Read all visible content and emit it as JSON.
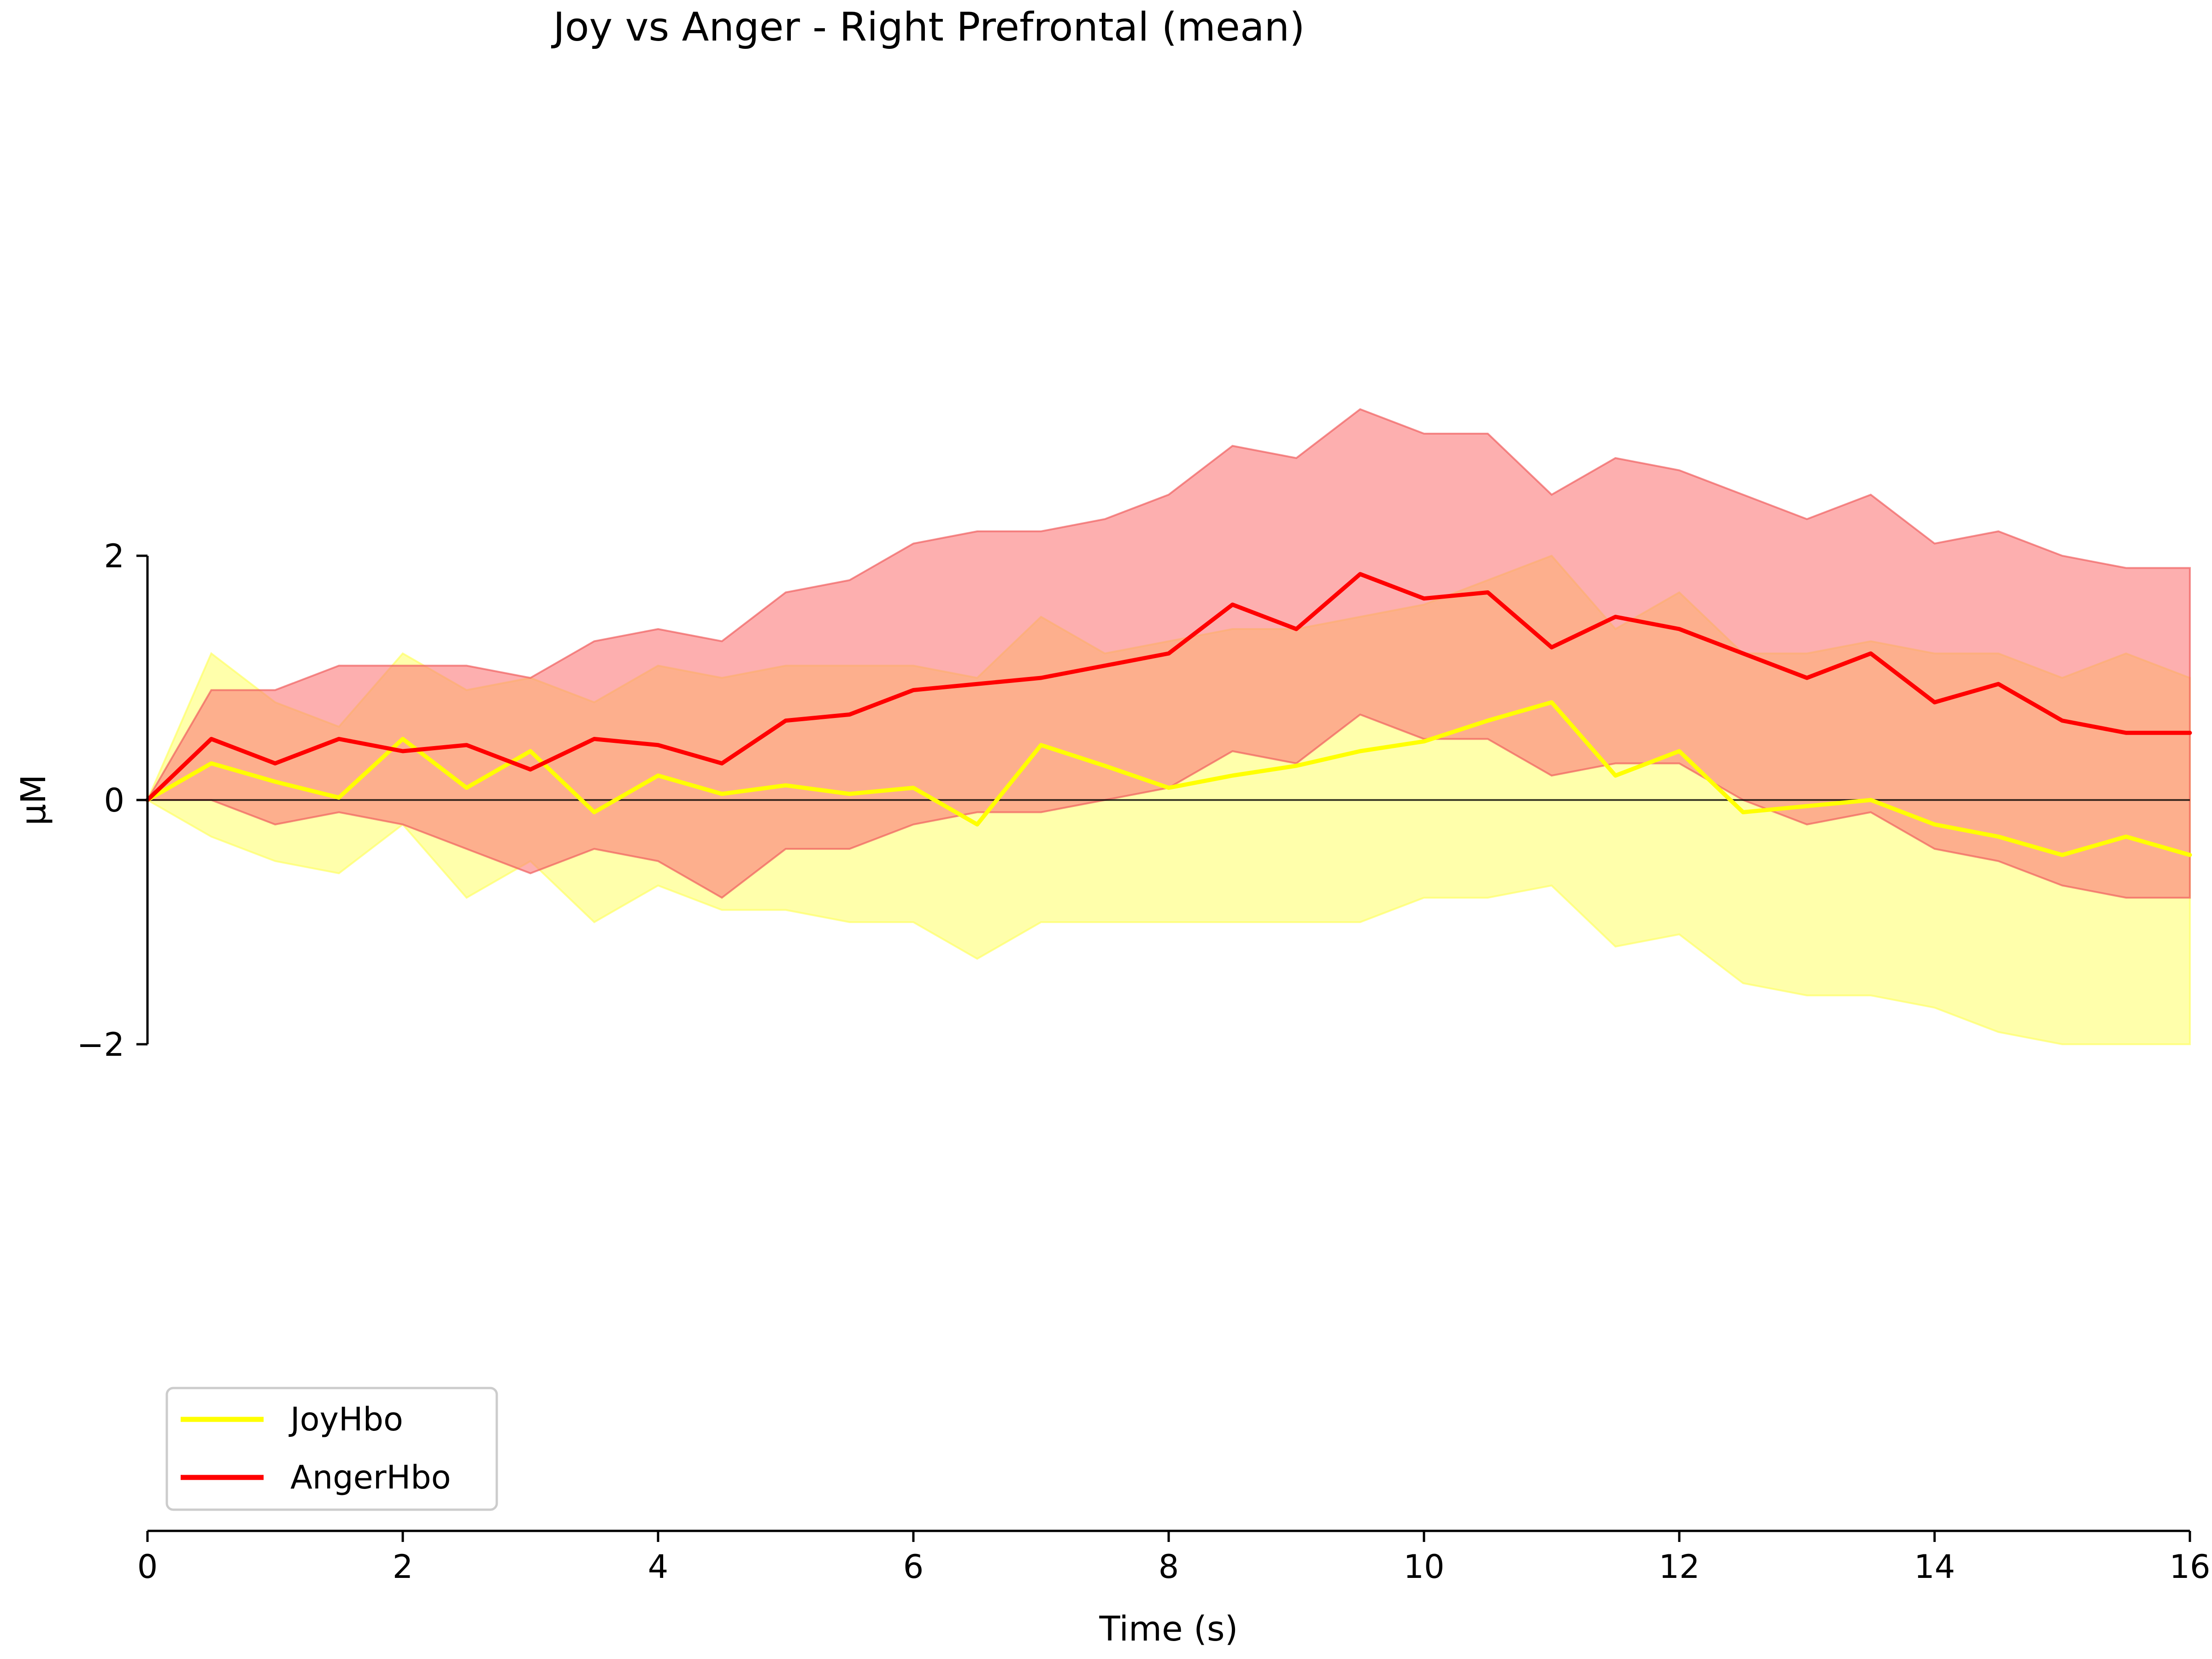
{
  "chart_data": {
    "type": "line",
    "title": "Joy vs Anger - Right Prefrontal (mean)",
    "xlabel": "Time (s)",
    "ylabel": "μM",
    "xlim": [
      0,
      16
    ],
    "ylim": [
      -2,
      2
    ],
    "x_ticks": [
      {
        "value": 0,
        "label": "0"
      },
      {
        "value": 2,
        "label": "2"
      },
      {
        "value": 4,
        "label": "4"
      },
      {
        "value": 6,
        "label": "6"
      },
      {
        "value": 8,
        "label": "8"
      },
      {
        "value": 10,
        "label": "10"
      },
      {
        "value": 12,
        "label": "12"
      },
      {
        "value": 14,
        "label": "14"
      },
      {
        "value": 16,
        "label": "16"
      }
    ],
    "y_ticks": [
      {
        "value": -2,
        "label": "−2"
      },
      {
        "value": 0,
        "label": "0"
      },
      {
        "value": 2,
        "label": "2"
      }
    ],
    "zero_line": true,
    "grid": false,
    "legend_position": "lower-left",
    "x": [
      0,
      0.5,
      1,
      1.5,
      2,
      2.5,
      3,
      3.5,
      4,
      4.5,
      5,
      5.5,
      6,
      6.5,
      7,
      7.5,
      8,
      8.5,
      9,
      9.5,
      10,
      10.5,
      11,
      11.5,
      12,
      12.5,
      13,
      13.5,
      14,
      14.5,
      15,
      15.5,
      16
    ],
    "series": [
      {
        "name": "JoyHbo",
        "color": "#ffff00",
        "band_color": "#ffff66",
        "values": [
          0,
          0.3,
          0.15,
          0.02,
          0.5,
          0.1,
          0.4,
          -0.1,
          0.2,
          0.05,
          0.12,
          0.05,
          0.1,
          -0.2,
          0.45,
          0.28,
          0.1,
          0.2,
          0.28,
          0.4,
          0.48,
          0.65,
          0.8,
          0.2,
          0.4,
          -0.1,
          -0.05,
          0,
          -0.2,
          -0.3,
          -0.45,
          -0.3,
          -0.45
        ],
        "lower": [
          0,
          -0.3,
          -0.5,
          -0.6,
          -0.2,
          -0.8,
          -0.5,
          -1.0,
          -0.7,
          -0.9,
          -0.9,
          -1.0,
          -1.0,
          -1.3,
          -1.0,
          -1.0,
          -1.0,
          -1.0,
          -1.0,
          -1.0,
          -0.8,
          -0.8,
          -0.7,
          -1.2,
          -1.1,
          -1.5,
          -1.6,
          -1.6,
          -1.7,
          -1.9,
          -2.0,
          -2.0,
          -2.0
        ],
        "upper": [
          0,
          1.2,
          0.8,
          0.6,
          1.2,
          0.9,
          1.0,
          0.8,
          1.1,
          1.0,
          1.1,
          1.1,
          1.1,
          1.0,
          1.5,
          1.2,
          1.3,
          1.4,
          1.4,
          1.5,
          1.6,
          1.8,
          2.0,
          1.4,
          1.7,
          1.2,
          1.2,
          1.3,
          1.2,
          1.2,
          1.0,
          1.2,
          1.0
        ]
      },
      {
        "name": "AngerHbo",
        "color": "#ff0000",
        "band_color": "#fb7a7a",
        "values": [
          0,
          0.5,
          0.3,
          0.5,
          0.4,
          0.45,
          0.25,
          0.5,
          0.45,
          0.3,
          0.65,
          0.7,
          0.9,
          0.95,
          1.0,
          1.1,
          1.2,
          1.6,
          1.4,
          1.85,
          1.65,
          1.7,
          1.25,
          1.5,
          1.4,
          1.2,
          1.0,
          1.2,
          0.8,
          0.95,
          0.65,
          0.55,
          0.55
        ],
        "lower": [
          0,
          0,
          -0.2,
          -0.1,
          -0.2,
          -0.4,
          -0.6,
          -0.4,
          -0.5,
          -0.8,
          -0.4,
          -0.4,
          -0.2,
          -0.1,
          -0.1,
          0,
          0.1,
          0.4,
          0.3,
          0.7,
          0.5,
          0.5,
          0.2,
          0.3,
          0.3,
          0,
          -0.2,
          -0.1,
          -0.4,
          -0.5,
          -0.7,
          -0.8,
          -0.8
        ],
        "upper": [
          0,
          0.9,
          0.9,
          1.1,
          1.1,
          1.1,
          1.0,
          1.3,
          1.4,
          1.3,
          1.7,
          1.8,
          2.1,
          2.2,
          2.2,
          2.3,
          2.5,
          2.9,
          2.8,
          3.2,
          3.0,
          3.0,
          2.5,
          2.8,
          2.7,
          2.5,
          2.3,
          2.5,
          2.1,
          2.2,
          2.0,
          1.9,
          1.9
        ]
      }
    ]
  }
}
